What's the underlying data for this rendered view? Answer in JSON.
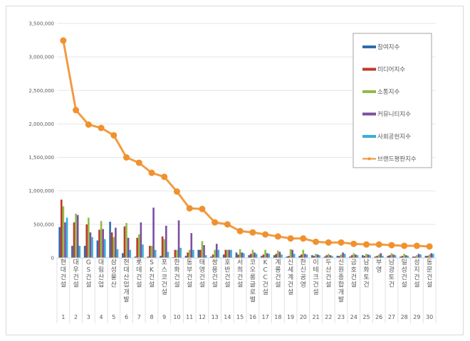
{
  "chart_data": {
    "type": "bar",
    "title": "",
    "xlabel": "",
    "ylabel": "",
    "ylim": [
      0,
      3500000
    ],
    "yticks": [
      "0",
      "500,000",
      "1,000,000",
      "1,500,000",
      "2,000,000",
      "2,500,000",
      "3,000,000",
      "3,500,000"
    ],
    "grid": true,
    "legend_position": "top-right",
    "ranks": [
      "1",
      "2",
      "3",
      "4",
      "5",
      "6",
      "7",
      "8",
      "9",
      "10",
      "11",
      "12",
      "13",
      "14",
      "15",
      "16",
      "17",
      "18",
      "19",
      "20",
      "21",
      "22",
      "23",
      "24",
      "25",
      "26",
      "27",
      "28",
      "29",
      "30"
    ],
    "categories": [
      "현대건설",
      "대우건설",
      "GS건설",
      "대림산업",
      "삼성물산",
      "현대산업개발",
      "롯데건설",
      "SK건설",
      "포스코건설",
      "한화건설",
      "동부건설",
      "태영건설",
      "쌍용건설",
      "호반건설",
      "서희건설",
      "코오롱글로벌",
      "KCC건설",
      "계룡건설",
      "신세계건설",
      "한신공영",
      "이테크건설",
      "두산건설",
      "신원종합개발",
      "금호건설",
      "남화토건",
      "부영",
      "남광토건",
      "일성건설",
      "성지건설",
      "동문건설"
    ],
    "series": [
      {
        "name": "참여지수",
        "type": "bar",
        "color": "#2e6bb0",
        "values": [
          460000,
          180000,
          180000,
          260000,
          540000,
          70000,
          20000,
          20000,
          30000,
          10000,
          30000,
          120000,
          20000,
          50000,
          80000,
          40000,
          30000,
          40000,
          20000,
          30000,
          40000,
          20000,
          30000,
          20000,
          40000,
          20000,
          30000,
          20000,
          20000,
          30000
        ]
      },
      {
        "name": "미디어지수",
        "type": "bar",
        "color": "#c0392b",
        "values": [
          870000,
          530000,
          500000,
          420000,
          380000,
          470000,
          300000,
          180000,
          320000,
          120000,
          80000,
          120000,
          50000,
          120000,
          50000,
          60000,
          50000,
          60000,
          30000,
          50000,
          30000,
          40000,
          30000,
          40000,
          30000,
          30000,
          40000,
          30000,
          20000,
          30000
        ]
      },
      {
        "name": "소통지수",
        "type": "bar",
        "color": "#8fbc45",
        "values": [
          770000,
          660000,
          600000,
          550000,
          310000,
          520000,
          350000,
          180000,
          280000,
          120000,
          120000,
          250000,
          120000,
          120000,
          130000,
          120000,
          120000,
          110000,
          130000,
          120000,
          60000,
          60000,
          50000,
          70000,
          60000,
          50000,
          70000,
          60000,
          40000,
          50000
        ]
      },
      {
        "name": "커뮤니티지수",
        "type": "bar",
        "color": "#7b4fa0",
        "values": [
          530000,
          640000,
          380000,
          430000,
          450000,
          300000,
          530000,
          750000,
          480000,
          560000,
          370000,
          190000,
          210000,
          120000,
          80000,
          80000,
          70000,
          90000,
          120000,
          60000,
          50000,
          40000,
          80000,
          50000,
          50000,
          70000,
          50000,
          40000,
          60000,
          70000
        ]
      },
      {
        "name": "사회공헌지수",
        "type": "bar",
        "color": "#3aaed8",
        "values": [
          600000,
          180000,
          310000,
          280000,
          130000,
          120000,
          200000,
          120000,
          90000,
          150000,
          120000,
          40000,
          120000,
          120000,
          70000,
          60000,
          60000,
          50000,
          60000,
          50000,
          40000,
          30000,
          60000,
          40000,
          40000,
          30000,
          40000,
          30000,
          50000,
          60000
        ]
      },
      {
        "name": "브랜드평판지수",
        "type": "line",
        "color": "#f0912e",
        "values": [
          3245000,
          2206000,
          1990000,
          1940000,
          1830000,
          1500000,
          1420000,
          1270000,
          1210000,
          990000,
          740000,
          730000,
          530000,
          500000,
          400000,
          380000,
          350000,
          320000,
          290000,
          290000,
          240000,
          230000,
          230000,
          210000,
          200000,
          200000,
          190000,
          180000,
          180000,
          170000
        ]
      }
    ]
  }
}
